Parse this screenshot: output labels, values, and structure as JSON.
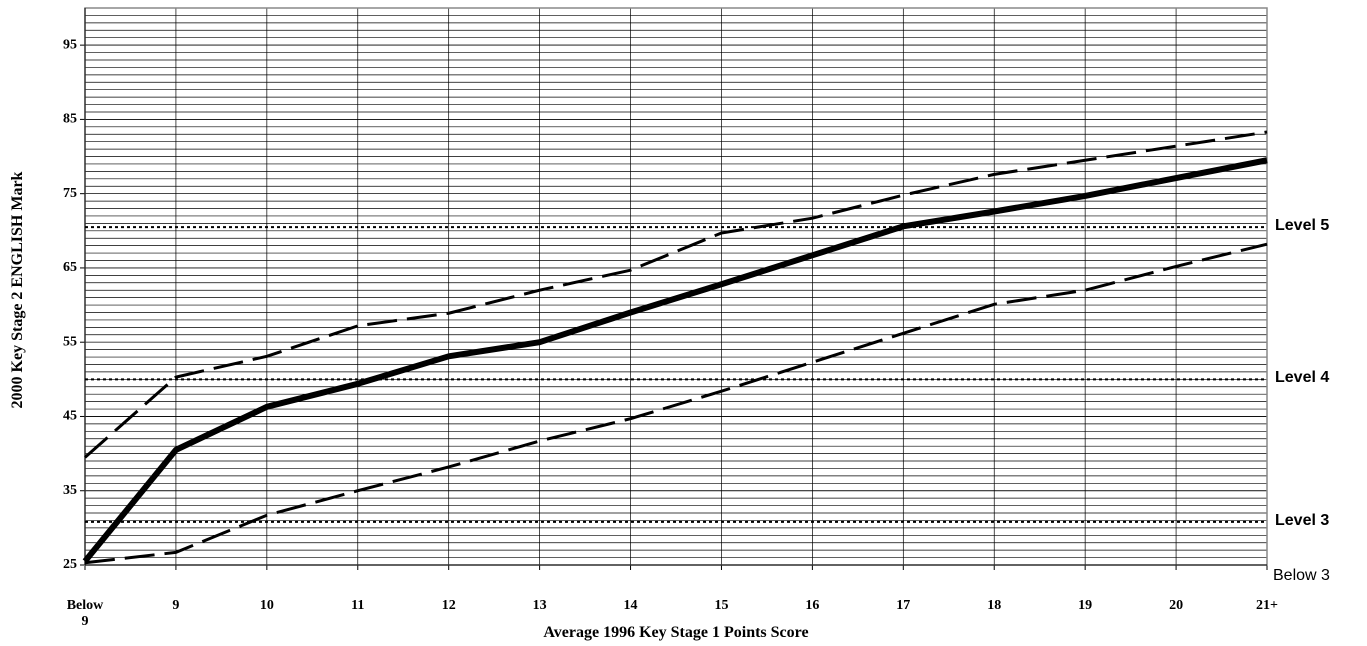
{
  "chart_data": {
    "type": "line",
    "x_label": "Average 1996 Key Stage 1 Points Score",
    "y_label": "2000 Key Stage 2 ENGLISH Mark",
    "categories": [
      "Below 9",
      "9",
      "10",
      "11",
      "12",
      "13",
      "14",
      "15",
      "16",
      "17",
      "18",
      "19",
      "20",
      "21+"
    ],
    "series": [
      {
        "style": "solid",
        "color": "#000000",
        "values": [
          25.5,
          40.5,
          46.3,
          49.4,
          53.1,
          55,
          59,
          62.8,
          66.7,
          70.6,
          72.6,
          74.7,
          77.1,
          79.5
        ]
      },
      {
        "style": "dashed",
        "color": "#000000",
        "values": [
          39.5,
          50.3,
          53.1,
          57.2,
          58.9,
          62,
          64.7,
          69.7,
          71.7,
          74.8,
          77.6,
          79.5,
          81.4,
          83.3
        ]
      },
      {
        "style": "dashed",
        "color": "#000000",
        "values": [
          25.3,
          26.7,
          31.7,
          35,
          38.2,
          41.7,
          44.7,
          48.4,
          52.3,
          56.2,
          60.1,
          62,
          65.2,
          68.2
        ]
      }
    ],
    "levels": [
      {
        "name": "Level 5",
        "value": 70.5
      },
      {
        "name": "Level 4",
        "value": 50
      },
      {
        "name": "Level 3",
        "value": 30.8
      }
    ],
    "bottom_annotation": "Below 3",
    "ylim": [
      25,
      100
    ],
    "yticks": [
      25,
      35,
      45,
      55,
      65,
      75,
      85,
      95
    ],
    "grid_step": 1,
    "grid": true
  }
}
